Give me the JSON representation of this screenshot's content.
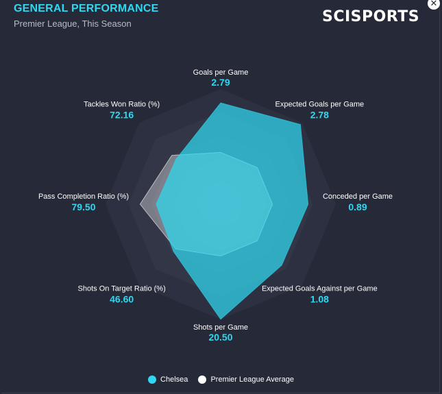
{
  "header": {
    "title": "GENERAL PERFORMANCE",
    "subtitle": "Premier League, This Season",
    "logo": "SCISPORTS",
    "close_icon": "close-icon"
  },
  "colors": {
    "team": "#2fd8f0",
    "average": "#ffffff"
  },
  "chart_data": {
    "type": "radar",
    "axes": [
      {
        "label": "Goals per Game",
        "value": "2.79"
      },
      {
        "label": "Expected Goals per Game",
        "value": "2.78"
      },
      {
        "label": "Conceded per Game",
        "value": "0.89"
      },
      {
        "label": "Expected Goals Against per Game",
        "value": "1.08"
      },
      {
        "label": "Shots per Game",
        "value": "20.50"
      },
      {
        "label": "Shots On Target Ratio (%)",
        "value": "46.60"
      },
      {
        "label": "Pass Completion Ratio (%)",
        "value": "79.50"
      },
      {
        "label": "Tackles Won Ratio (%)",
        "value": "72.16"
      }
    ],
    "series": [
      {
        "name": "Chelsea",
        "scores": [
          0.88,
          0.98,
          0.76,
          0.75,
          1.0,
          0.58,
          0.56,
          0.55
        ]
      },
      {
        "name": "Premier League Average",
        "scores": [
          0.45,
          0.45,
          0.45,
          0.45,
          0.45,
          0.55,
          0.7,
          0.6
        ]
      }
    ],
    "rings": 5,
    "legend_position": "bottom"
  }
}
